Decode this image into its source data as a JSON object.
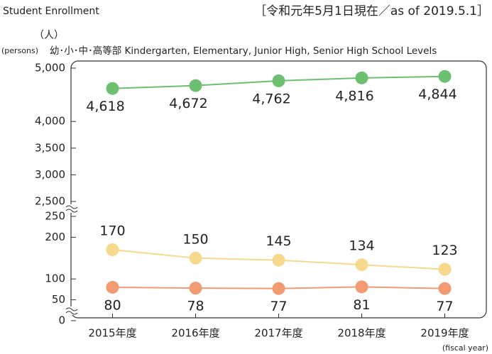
{
  "chart_data": {
    "type": "line",
    "title": "Student Enrollment",
    "date_note": "［令和元年5月1日現在／as of 2019.5.1］",
    "y_unit_ja": "（人）",
    "y_unit_en": "(persons)",
    "subtitle": "幼･小･中･高等部 Kindergarten, Elementary, Junior High, Senior High School Levels",
    "x_label": "(fiscal year)",
    "categories": [
      "2015年度",
      "2016年度",
      "2017年度",
      "2018年度",
      "2019年度"
    ],
    "panels": [
      {
        "ylim": [
          2500,
          5000
        ],
        "yticks": [
          {
            "value": 2500,
            "label": "2,500"
          },
          {
            "value": 3000,
            "label": "3,000"
          },
          {
            "value": 3500,
            "label": "3,500"
          },
          {
            "value": 4000,
            "label": "4,000"
          },
          {
            "value": 5000,
            "label": "5,000"
          }
        ],
        "series": [
          {
            "color": "#6cc070",
            "values": [
              4618,
              4672,
              4762,
              4816,
              4844
            ],
            "value_labels": [
              "4,618",
              "4,672",
              "4,762",
              "4,816",
              "4,844"
            ],
            "label_side": "below"
          }
        ]
      },
      {
        "ylim": [
          0,
          250
        ],
        "yticks": [
          0,
          50,
          100,
          200,
          250
        ],
        "series": [
          {
            "color": "#f7d98e",
            "values": [
              170,
              150,
              145,
              134,
              123
            ],
            "label_side": "above"
          },
          {
            "color": "#f29a72",
            "values": [
              80,
              78,
              77,
              81,
              77
            ],
            "label_side": "below"
          }
        ]
      }
    ]
  }
}
